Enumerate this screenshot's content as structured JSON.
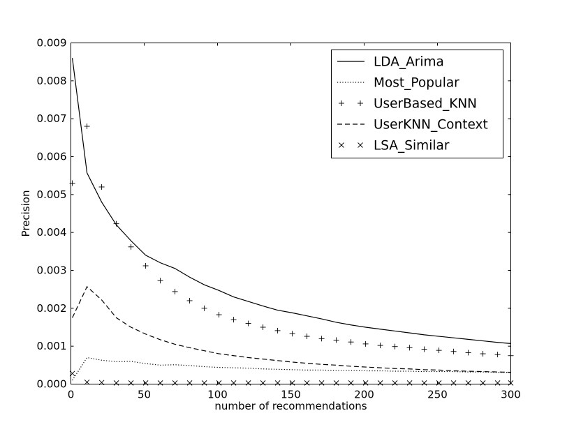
{
  "chart_data": {
    "type": "line",
    "title": "",
    "xlabel": "number of recommendations",
    "ylabel": "Precision",
    "xlim": [
      0,
      300
    ],
    "ylim": [
      0,
      0.009
    ],
    "x_ticks": [
      0,
      50,
      100,
      150,
      200,
      250,
      300
    ],
    "y_ticks": [
      0.0,
      0.001,
      0.002,
      0.003,
      0.004,
      0.005,
      0.006,
      0.007,
      0.008,
      0.009
    ],
    "x_tick_labels": [
      "0",
      "50",
      "100",
      "150",
      "200",
      "250",
      "300"
    ],
    "y_tick_labels": [
      "0.000",
      "0.001",
      "0.002",
      "0.003",
      "0.004",
      "0.005",
      "0.006",
      "0.007",
      "0.008",
      "0.009"
    ],
    "grid": false,
    "legend_position": "top-right",
    "series": [
      {
        "name": "LDA_Arima",
        "style": "solid",
        "x": [
          1,
          11,
          21,
          31,
          41,
          51,
          61,
          71,
          81,
          91,
          101,
          111,
          121,
          131,
          141,
          151,
          161,
          171,
          181,
          191,
          201,
          211,
          221,
          231,
          241,
          251,
          261,
          271,
          281,
          291,
          300
        ],
        "y": [
          0.0086,
          0.00557,
          0.0048,
          0.0042,
          0.00378,
          0.0034,
          0.0032,
          0.00305,
          0.00282,
          0.00262,
          0.00247,
          0.0023,
          0.00218,
          0.00206,
          0.00195,
          0.00188,
          0.0018,
          0.00172,
          0.00163,
          0.00156,
          0.0015,
          0.00145,
          0.0014,
          0.00135,
          0.0013,
          0.00126,
          0.00122,
          0.00118,
          0.00114,
          0.0011,
          0.00107
        ]
      },
      {
        "name": "Most_Popular",
        "style": "dotted",
        "x": [
          1,
          11,
          21,
          31,
          41,
          51,
          61,
          71,
          81,
          91,
          101,
          111,
          121,
          131,
          141,
          151,
          161,
          171,
          181,
          191,
          201,
          211,
          221,
          231,
          241,
          251,
          261,
          271,
          281,
          291,
          300
        ],
        "y": [
          0.0001,
          0.0007,
          0.00063,
          0.00059,
          0.0006,
          0.00054,
          0.0005,
          0.00051,
          0.00049,
          0.00046,
          0.00044,
          0.00043,
          0.00042,
          0.0004,
          0.00039,
          0.00038,
          0.00037,
          0.00037,
          0.00036,
          0.00036,
          0.00035,
          0.00035,
          0.00034,
          0.00034,
          0.00033,
          0.00033,
          0.00033,
          0.00032,
          0.00032,
          0.00031,
          0.00031
        ]
      },
      {
        "name": "UserBased_KNN",
        "style": "plus",
        "x": [
          1,
          11,
          21,
          31,
          41,
          51,
          61,
          71,
          81,
          91,
          101,
          111,
          121,
          131,
          141,
          151,
          161,
          171,
          181,
          191,
          201,
          211,
          221,
          231,
          241,
          251,
          261,
          271,
          281,
          291,
          300
        ],
        "y": [
          0.0053,
          0.0068,
          0.0052,
          0.00423,
          0.00362,
          0.00312,
          0.00273,
          0.00244,
          0.0022,
          0.002,
          0.00183,
          0.0017,
          0.0016,
          0.0015,
          0.00141,
          0.00133,
          0.00126,
          0.0012,
          0.00116,
          0.00111,
          0.00106,
          0.00102,
          0.00099,
          0.00096,
          0.00092,
          0.00089,
          0.00086,
          0.00083,
          0.0008,
          0.00078,
          0.00075
        ]
      },
      {
        "name": "UserKNN_Context",
        "style": "dashed",
        "x": [
          1,
          11,
          21,
          31,
          41,
          51,
          61,
          71,
          81,
          91,
          101,
          111,
          121,
          131,
          141,
          151,
          161,
          171,
          181,
          191,
          201,
          211,
          221,
          231,
          241,
          251,
          261,
          271,
          281,
          291,
          300
        ],
        "y": [
          0.00175,
          0.00257,
          0.00222,
          0.00175,
          0.0015,
          0.00132,
          0.00117,
          0.00105,
          0.00096,
          0.00088,
          0.0008,
          0.00075,
          0.0007,
          0.00066,
          0.00062,
          0.00058,
          0.00055,
          0.00052,
          0.0005,
          0.00047,
          0.00045,
          0.00043,
          0.00041,
          0.0004,
          0.00038,
          0.00037,
          0.00035,
          0.00034,
          0.00033,
          0.00032,
          0.00031
        ]
      },
      {
        "name": "LSA_Similar",
        "style": "x",
        "x": [
          1,
          11,
          21,
          31,
          41,
          51,
          61,
          71,
          81,
          91,
          101,
          111,
          121,
          131,
          141,
          151,
          161,
          171,
          181,
          191,
          201,
          211,
          221,
          231,
          241,
          251,
          261,
          271,
          281,
          291,
          300
        ],
        "y": [
          0.00028,
          5e-05,
          4e-05,
          3e-05,
          3e-05,
          3e-05,
          3e-05,
          3e-05,
          3e-05,
          3e-05,
          3e-05,
          3e-05,
          3e-05,
          3e-05,
          3e-05,
          3e-05,
          3e-05,
          3e-05,
          3e-05,
          3e-05,
          3e-05,
          3e-05,
          3e-05,
          3e-05,
          3e-05,
          3e-05,
          3e-05,
          3e-05,
          3e-05,
          3e-05,
          3e-05
        ]
      }
    ]
  }
}
